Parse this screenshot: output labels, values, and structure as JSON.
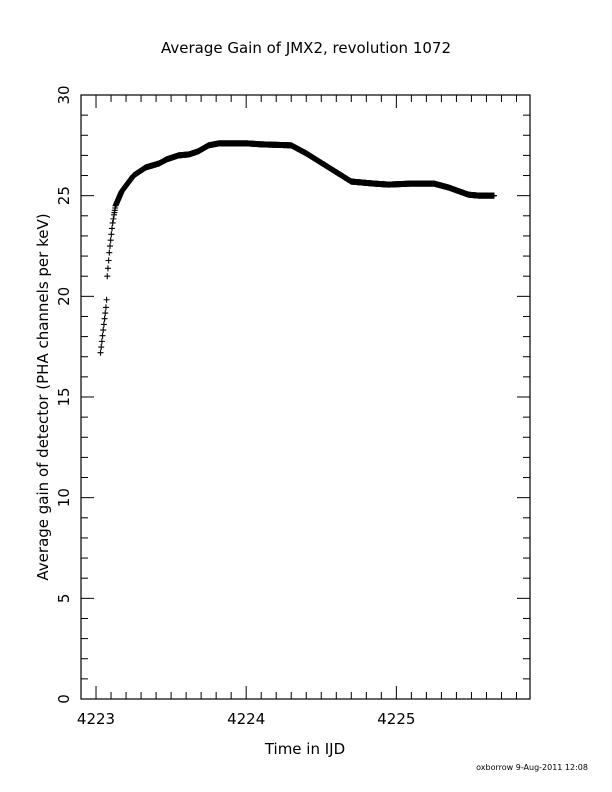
{
  "chart_data": {
    "type": "scatter",
    "title": "Average Gain of JMX2, revolution 1072",
    "xlabel": "Time in IJD",
    "ylabel": "Average gain of detector (PHA channels per keV)",
    "xlim": [
      4222.9,
      4225.89
    ],
    "ylim": [
      0,
      30
    ],
    "xticks": [
      4223,
      4224,
      4225
    ],
    "yticks": [
      0,
      5,
      10,
      15,
      20,
      25,
      30
    ],
    "x_minor_step": 0.1,
    "y_minor_step": 1,
    "marker": "plus",
    "color": "#000000",
    "series_knots": [
      [
        4223.03,
        17.2
      ],
      [
        4223.07,
        19.7
      ],
      [
        4223.075,
        21.0
      ],
      [
        4223.09,
        22.3
      ],
      [
        4223.11,
        23.6
      ],
      [
        4223.13,
        24.5
      ],
      [
        4223.17,
        25.2
      ],
      [
        4223.25,
        26.0
      ],
      [
        4223.33,
        26.4
      ],
      [
        4223.42,
        26.6
      ],
      [
        4223.47,
        26.8
      ],
      [
        4223.55,
        27.0
      ],
      [
        4223.62,
        27.05
      ],
      [
        4223.68,
        27.2
      ],
      [
        4223.75,
        27.5
      ],
      [
        4223.82,
        27.6
      ],
      [
        4224.0,
        27.6
      ],
      [
        4224.1,
        27.55
      ],
      [
        4224.3,
        27.5
      ],
      [
        4224.4,
        27.1
      ],
      [
        4224.55,
        26.4
      ],
      [
        4224.7,
        25.7
      ],
      [
        4224.85,
        25.6
      ],
      [
        4224.95,
        25.55
      ],
      [
        4225.1,
        25.6
      ],
      [
        4225.25,
        25.6
      ],
      [
        4225.35,
        25.4
      ],
      [
        4225.48,
        25.05
      ],
      [
        4225.55,
        25.0
      ],
      [
        4225.65,
        25.0
      ]
    ]
  },
  "footer": {
    "credit": "oxborrow   9-Aug-2011 12:08"
  }
}
